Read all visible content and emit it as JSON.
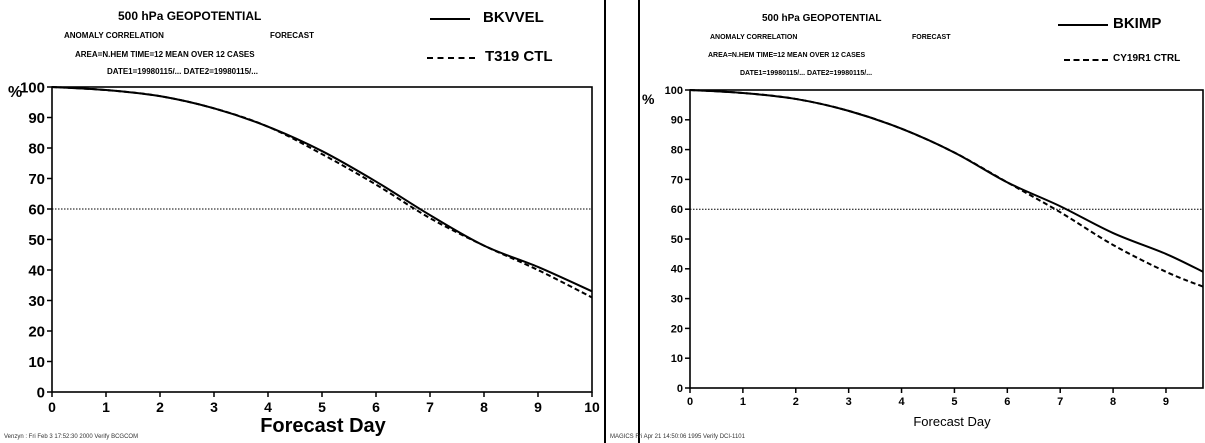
{
  "chart_data": [
    {
      "type": "line",
      "title": "500 hPa GEOPOTENTIAL",
      "header": {
        "line2_left": "ANOMALY CORRELATION",
        "line2_right": "FORECAST",
        "line3": "AREA=N.HEM   TIME=12   MEAN OVER  12 CASES",
        "line4": "DATE1=19980115/...  DATE2=19980115/..."
      },
      "ylabel": "%",
      "xlabel": "Forecast Day",
      "x_ticks": [
        "0",
        "1",
        "2",
        "3",
        "4",
        "5",
        "6",
        "7",
        "8",
        "9",
        "10"
      ],
      "y_ticks": [
        "0",
        "10",
        "20",
        "30",
        "40",
        "50",
        "60",
        "70",
        "80",
        "90",
        "100"
      ],
      "xlim": [
        0,
        10
      ],
      "ylim": [
        0,
        100
      ],
      "reference_line": 60,
      "legend": [
        "BKVVEL",
        "T319 CTL"
      ],
      "series": [
        {
          "name": "BKVVEL",
          "style": "solid",
          "x": [
            0,
            1,
            2,
            3,
            4,
            5,
            6,
            7,
            8,
            9,
            10
          ],
          "y": [
            100,
            99,
            97,
            93,
            87,
            79,
            69,
            58,
            48,
            41,
            33
          ]
        },
        {
          "name": "T319 CTL",
          "style": "dashed",
          "x": [
            0,
            1,
            2,
            3,
            4,
            5,
            6,
            7,
            8,
            9,
            10
          ],
          "y": [
            100,
            99,
            97,
            93,
            87,
            78,
            68,
            57,
            48,
            40,
            31
          ]
        }
      ],
      "footer": "Venzyn : Fri Feb  3 17:52:30 2000 Verify BCGCOM"
    },
    {
      "type": "line",
      "title": "500 hPa GEOPOTENTIAL",
      "header": {
        "line2_left": "ANOMALY CORRELATION",
        "line2_right": "FORECAST",
        "line3": "AREA=N.HEM   TIME=12   MEAN OVER  12 CASES",
        "line4": "DATE1=19980115/...  DATE2=19980115/..."
      },
      "ylabel": "%",
      "xlabel": "Forecast Day",
      "x_ticks": [
        "0",
        "1",
        "2",
        "3",
        "4",
        "5",
        "6",
        "7",
        "8",
        "9"
      ],
      "y_ticks": [
        "0",
        "10",
        "20",
        "30",
        "40",
        "50",
        "60",
        "70",
        "80",
        "90",
        "100"
      ],
      "xlim": [
        0,
        9.7
      ],
      "ylim": [
        0,
        100
      ],
      "reference_line": 60,
      "legend": [
        "BKIMP",
        "CY19R1 CTRL"
      ],
      "series": [
        {
          "name": "BKIMP",
          "style": "solid",
          "x": [
            0,
            1,
            2,
            3,
            4,
            5,
            6,
            7,
            8,
            9,
            9.7
          ],
          "y": [
            100,
            99,
            97,
            93,
            87,
            79,
            69,
            61,
            52,
            45,
            39
          ]
        },
        {
          "name": "CY19R1 CTRL",
          "style": "dashed",
          "x": [
            0,
            1,
            2,
            3,
            4,
            5,
            6,
            7,
            8,
            9,
            9.7
          ],
          "y": [
            100,
            99,
            97,
            93,
            87,
            79,
            69,
            59,
            48,
            39,
            34
          ]
        }
      ],
      "footer": "MAGICS  Fri Apr 21 14:50:06 1995 Verify  DCI-1101"
    }
  ]
}
